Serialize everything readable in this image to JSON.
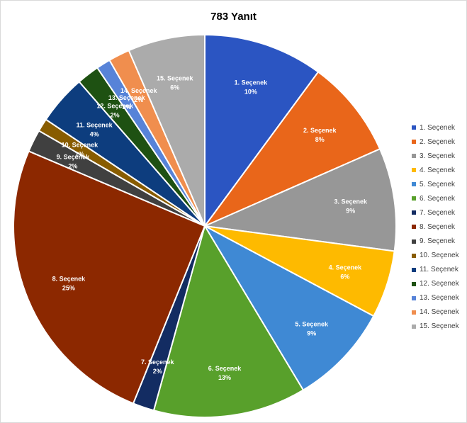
{
  "chart_data": {
    "type": "pie",
    "title": "783 Yanıt",
    "legend_position": "right",
    "slices": [
      {
        "label": "1. Seçenek",
        "percent_label": "10%",
        "value": 10.1,
        "color": "#2B55C2"
      },
      {
        "label": "2. Seçenek",
        "percent_label": "8%",
        "value": 8.3,
        "color": "#E9661A"
      },
      {
        "label": "3. Seçenek",
        "percent_label": "9%",
        "value": 8.7,
        "color": "#979797"
      },
      {
        "label": "4. Seçenek",
        "percent_label": "6%",
        "value": 5.7,
        "color": "#FEBA00"
      },
      {
        "label": "5. Seçenek",
        "percent_label": "9%",
        "value": 8.6,
        "color": "#3F89D4"
      },
      {
        "label": "6. Seçenek",
        "percent_label": "13%",
        "value": 12.9,
        "color": "#58A02B"
      },
      {
        "label": "7. Seçenek",
        "percent_label": "2%",
        "value": 1.8,
        "color": "#132C62"
      },
      {
        "label": "8. Seçenek",
        "percent_label": "25%",
        "value": 25.3,
        "color": "#8C2800"
      },
      {
        "label": "9. Seçenek",
        "percent_label": "2%",
        "value": 1.9,
        "color": "#404040"
      },
      {
        "label": "10. Seçenek",
        "percent_label": "1%",
        "value": 1.1,
        "color": "#885C00"
      },
      {
        "label": "11. Seçenek",
        "percent_label": "4%",
        "value": 4.2,
        "color": "#0D3D7E"
      },
      {
        "label": "12. Seçenek",
        "percent_label": "2%",
        "value": 1.9,
        "color": "#1E5112"
      },
      {
        "label": "13. Seçenek",
        "percent_label": "1%",
        "value": 1.2,
        "color": "#5783D8"
      },
      {
        "label": "14. Seçenek",
        "percent_label": "2%",
        "value": 1.8,
        "color": "#F08E4E"
      },
      {
        "label": "15. Seçenek",
        "percent_label": "6%",
        "value": 6.5,
        "color": "#ABABAB"
      }
    ]
  }
}
